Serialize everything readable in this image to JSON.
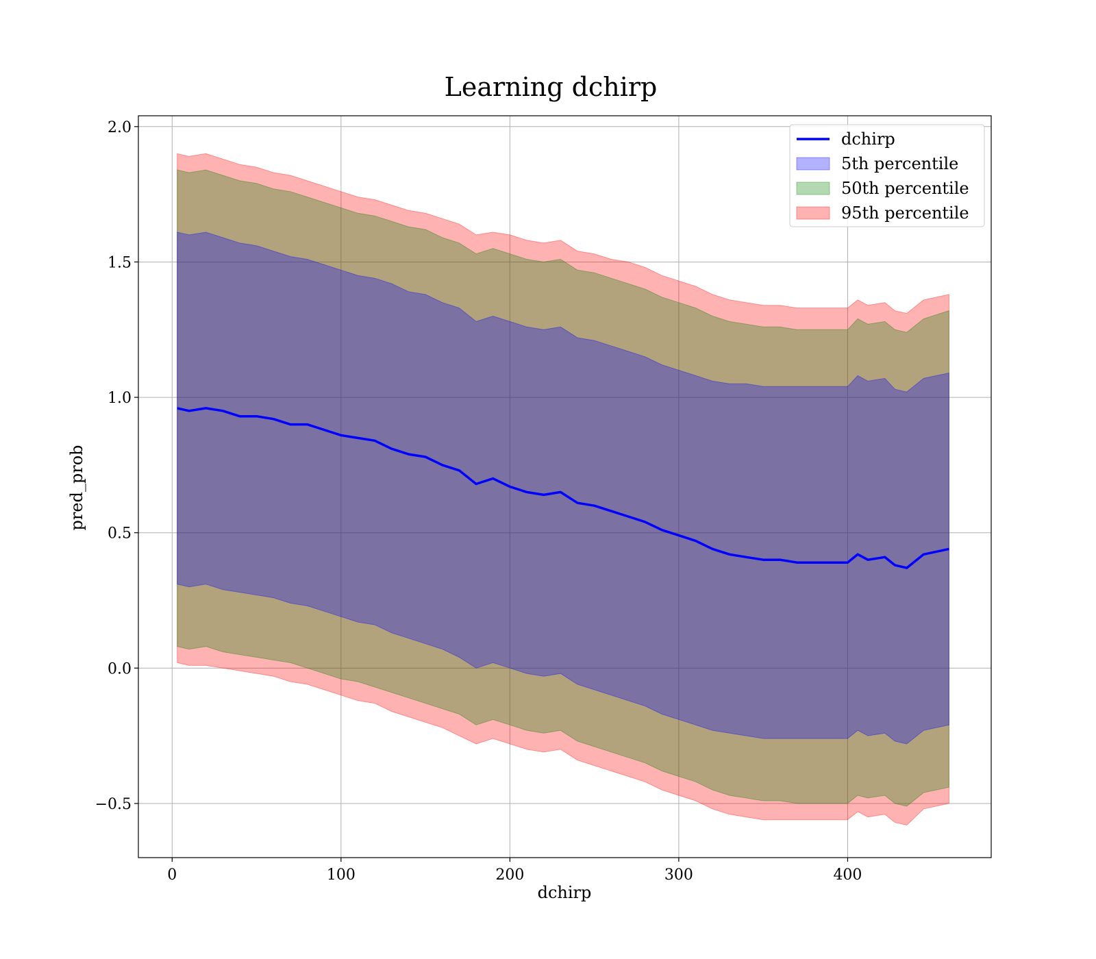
{
  "chart_data": {
    "type": "area",
    "title": "Learning dchirp",
    "xlabel": "dchirp",
    "ylabel": "pred_prob",
    "xlim": [
      -20,
      485
    ],
    "ylim": [
      -0.7,
      2.04
    ],
    "xticks": [
      0,
      100,
      200,
      300,
      400
    ],
    "yticks": [
      -0.5,
      0.0,
      0.5,
      1.0,
      1.5,
      2.0
    ],
    "xtick_labels": [
      "0",
      "100",
      "200",
      "300",
      "400"
    ],
    "ytick_labels": [
      "−0.5",
      "0.0",
      "0.5",
      "1.0",
      "1.5",
      "2.0"
    ],
    "grid": true,
    "legend_position": "top-right",
    "x": [
      3,
      10,
      20,
      30,
      40,
      50,
      60,
      70,
      80,
      90,
      100,
      110,
      120,
      130,
      140,
      150,
      160,
      170,
      180,
      190,
      200,
      210,
      220,
      230,
      240,
      250,
      260,
      270,
      280,
      290,
      300,
      310,
      320,
      330,
      340,
      350,
      360,
      370,
      380,
      390,
      400,
      406,
      412,
      422,
      428,
      435,
      445,
      460
    ],
    "line": {
      "name": "dchirp",
      "color": "#0000ff",
      "values": [
        0.96,
        0.95,
        0.96,
        0.95,
        0.93,
        0.93,
        0.92,
        0.9,
        0.9,
        0.88,
        0.86,
        0.85,
        0.84,
        0.81,
        0.79,
        0.78,
        0.75,
        0.73,
        0.68,
        0.7,
        0.67,
        0.65,
        0.64,
        0.65,
        0.61,
        0.6,
        0.58,
        0.56,
        0.54,
        0.51,
        0.49,
        0.47,
        0.44,
        0.42,
        0.41,
        0.4,
        0.4,
        0.39,
        0.39,
        0.39,
        0.39,
        0.42,
        0.4,
        0.41,
        0.38,
        0.37,
        0.42,
        0.44
      ]
    },
    "bands": [
      {
        "name": "95th percentile",
        "color": "#ff0000",
        "opacity": 0.3,
        "upper": [
          1.9,
          1.89,
          1.9,
          1.88,
          1.86,
          1.85,
          1.83,
          1.82,
          1.8,
          1.78,
          1.76,
          1.74,
          1.73,
          1.71,
          1.69,
          1.68,
          1.66,
          1.64,
          1.6,
          1.61,
          1.6,
          1.58,
          1.57,
          1.58,
          1.54,
          1.53,
          1.51,
          1.5,
          1.48,
          1.45,
          1.43,
          1.41,
          1.38,
          1.36,
          1.35,
          1.34,
          1.34,
          1.33,
          1.33,
          1.33,
          1.33,
          1.36,
          1.34,
          1.35,
          1.32,
          1.31,
          1.36,
          1.38
        ],
        "lower": [
          0.02,
          0.01,
          0.01,
          0.0,
          -0.01,
          -0.02,
          -0.03,
          -0.05,
          -0.06,
          -0.08,
          -0.1,
          -0.12,
          -0.13,
          -0.16,
          -0.18,
          -0.2,
          -0.22,
          -0.25,
          -0.28,
          -0.26,
          -0.28,
          -0.3,
          -0.31,
          -0.3,
          -0.34,
          -0.36,
          -0.38,
          -0.4,
          -0.42,
          -0.45,
          -0.47,
          -0.49,
          -0.52,
          -0.54,
          -0.55,
          -0.56,
          -0.56,
          -0.56,
          -0.56,
          -0.56,
          -0.56,
          -0.53,
          -0.55,
          -0.54,
          -0.57,
          -0.58,
          -0.52,
          -0.5
        ]
      },
      {
        "name": "50th percentile",
        "color": "#008000",
        "opacity": 0.3,
        "upper": [
          1.84,
          1.83,
          1.84,
          1.82,
          1.8,
          1.79,
          1.77,
          1.76,
          1.74,
          1.72,
          1.7,
          1.68,
          1.67,
          1.65,
          1.63,
          1.62,
          1.59,
          1.57,
          1.53,
          1.55,
          1.53,
          1.51,
          1.5,
          1.51,
          1.47,
          1.46,
          1.44,
          1.42,
          1.4,
          1.37,
          1.35,
          1.33,
          1.3,
          1.28,
          1.27,
          1.26,
          1.26,
          1.25,
          1.25,
          1.25,
          1.25,
          1.29,
          1.27,
          1.28,
          1.25,
          1.24,
          1.29,
          1.32
        ],
        "lower": [
          0.08,
          0.07,
          0.08,
          0.06,
          0.05,
          0.04,
          0.03,
          0.02,
          0.0,
          -0.02,
          -0.04,
          -0.05,
          -0.07,
          -0.09,
          -0.11,
          -0.13,
          -0.15,
          -0.17,
          -0.21,
          -0.19,
          -0.21,
          -0.23,
          -0.24,
          -0.23,
          -0.27,
          -0.29,
          -0.31,
          -0.33,
          -0.35,
          -0.38,
          -0.4,
          -0.42,
          -0.45,
          -0.47,
          -0.48,
          -0.49,
          -0.49,
          -0.5,
          -0.5,
          -0.5,
          -0.5,
          -0.47,
          -0.48,
          -0.47,
          -0.5,
          -0.51,
          -0.46,
          -0.44
        ]
      },
      {
        "name": "5th percentile",
        "color": "#0000ff",
        "opacity": 0.3,
        "upper": [
          1.61,
          1.6,
          1.61,
          1.59,
          1.57,
          1.56,
          1.54,
          1.52,
          1.51,
          1.49,
          1.47,
          1.45,
          1.44,
          1.42,
          1.39,
          1.38,
          1.35,
          1.33,
          1.28,
          1.3,
          1.28,
          1.26,
          1.25,
          1.26,
          1.22,
          1.21,
          1.19,
          1.17,
          1.15,
          1.12,
          1.1,
          1.08,
          1.06,
          1.05,
          1.05,
          1.04,
          1.04,
          1.04,
          1.04,
          1.04,
          1.04,
          1.08,
          1.06,
          1.07,
          1.03,
          1.02,
          1.07,
          1.09
        ],
        "lower": [
          0.31,
          0.3,
          0.31,
          0.29,
          0.28,
          0.27,
          0.26,
          0.24,
          0.23,
          0.21,
          0.19,
          0.17,
          0.16,
          0.13,
          0.11,
          0.09,
          0.07,
          0.04,
          0.0,
          0.02,
          0.0,
          -0.02,
          -0.03,
          -0.02,
          -0.06,
          -0.08,
          -0.1,
          -0.12,
          -0.14,
          -0.17,
          -0.19,
          -0.21,
          -0.23,
          -0.24,
          -0.25,
          -0.26,
          -0.26,
          -0.26,
          -0.26,
          -0.26,
          -0.26,
          -0.23,
          -0.25,
          -0.24,
          -0.27,
          -0.28,
          -0.23,
          -0.21
        ]
      }
    ],
    "legend": [
      {
        "label": "dchirp",
        "kind": "line",
        "color": "#0000ff"
      },
      {
        "label": "5th percentile",
        "kind": "patch",
        "color": "#0000ff"
      },
      {
        "label": "50th percentile",
        "kind": "patch",
        "color": "#008000"
      },
      {
        "label": "95th percentile",
        "kind": "patch",
        "color": "#ff0000"
      }
    ]
  }
}
